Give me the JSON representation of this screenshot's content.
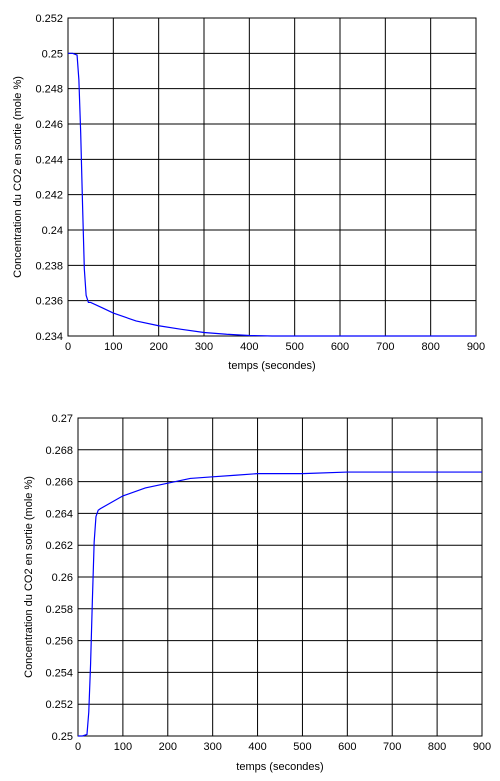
{
  "chart_data": [
    {
      "type": "line",
      "xlabel": "temps (secondes)",
      "ylabel": "Concentration du CO2 en sortie (mole %)",
      "xlim": [
        0,
        900
      ],
      "ylim": [
        0.234,
        0.252
      ],
      "x_ticks": [
        "0",
        "100",
        "200",
        "300",
        "400",
        "500",
        "600",
        "700",
        "800",
        "900"
      ],
      "y_ticks": [
        "0.234",
        "0.236",
        "0.238",
        "0.24",
        "0.242",
        "0.244",
        "0.246",
        "0.248",
        "0.25",
        "0.252"
      ],
      "grid": true,
      "line_color": "#0000ff",
      "series": [
        {
          "x": [
            0,
            10,
            20,
            24,
            28,
            32,
            36,
            40,
            45,
            50,
            75,
            100,
            150,
            200,
            250,
            300,
            350,
            400,
            450,
            500,
            600,
            700,
            800,
            900
          ],
          "y": [
            0.25,
            0.25,
            0.2499,
            0.2485,
            0.2455,
            0.2415,
            0.2378,
            0.2363,
            0.2359,
            0.2359,
            0.2356,
            0.2353,
            0.23485,
            0.23458,
            0.23438,
            0.2342,
            0.2341,
            0.23403,
            0.234,
            0.234,
            0.234,
            0.234,
            0.234,
            0.234
          ]
        }
      ]
    },
    {
      "type": "line",
      "xlabel": "temps (secondes)",
      "ylabel": "Concentration du CO2 en sortie (mole %)",
      "xlim": [
        0,
        900
      ],
      "ylim": [
        0.25,
        0.27
      ],
      "x_ticks": [
        "0",
        "100",
        "200",
        "300",
        "400",
        "500",
        "600",
        "700",
        "800",
        "900"
      ],
      "y_ticks": [
        "0.25",
        "0.252",
        "0.254",
        "0.256",
        "0.258",
        "0.26",
        "0.262",
        "0.264",
        "0.266",
        "0.268",
        "0.27"
      ],
      "grid": true,
      "line_color": "#0000ff",
      "series": [
        {
          "x": [
            0,
            10,
            20,
            24,
            28,
            32,
            36,
            40,
            45,
            50,
            75,
            100,
            150,
            200,
            250,
            300,
            350,
            400,
            450,
            500,
            600,
            700,
            800,
            900
          ],
          "y": [
            0.25,
            0.25,
            0.2501,
            0.2515,
            0.2545,
            0.2585,
            0.2622,
            0.2638,
            0.2642,
            0.2643,
            0.2647,
            0.2651,
            0.2656,
            0.2659,
            0.2662,
            0.2663,
            0.2664,
            0.2665,
            0.2665,
            0.2665,
            0.2666,
            0.2666,
            0.2666,
            0.2666
          ]
        }
      ]
    }
  ]
}
